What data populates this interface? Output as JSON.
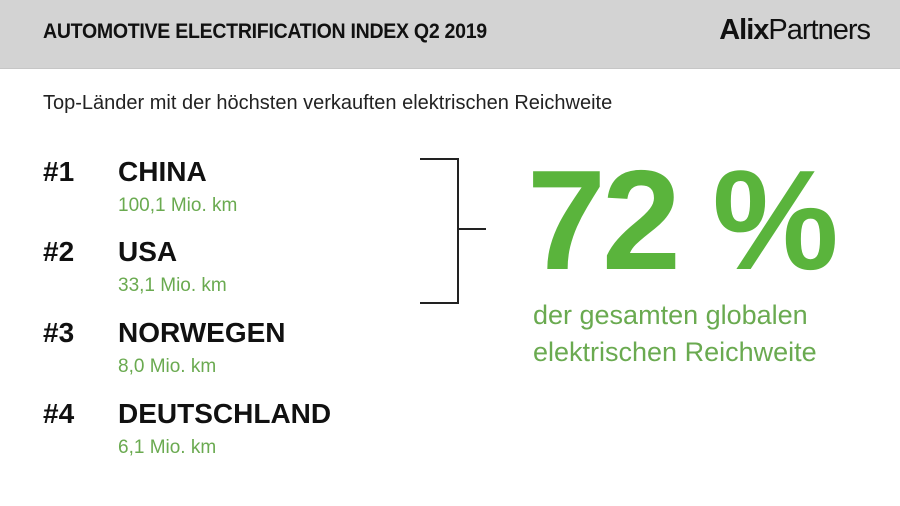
{
  "header": {
    "title": "AUTOMOTIVE ELECTRIFICATION INDEX Q2 2019",
    "logo_bold": "Alix",
    "logo_rest": "Partners"
  },
  "subtitle": "Top-Länder mit der höchsten verkauften elektrischen Reichweite",
  "rankings": [
    {
      "rank": "#1",
      "country": "CHINA",
      "value": "100,1 Mio. km"
    },
    {
      "rank": "#2",
      "country": "USA",
      "value": "33,1 Mio. km"
    },
    {
      "rank": "#3",
      "country": "NORWEGEN",
      "value": "8,0 Mio. km"
    },
    {
      "rank": "#4",
      "country": "DEUTSCHLAND",
      "value": "6,1 Mio. km"
    }
  ],
  "highlight": {
    "value": "72 %",
    "line1": "der gesamten globalen",
    "line2": "elektrischen Reichweite"
  },
  "colors": {
    "accent": "#5ab43c",
    "value_text": "#6aaa50",
    "header_bg": "#d3d3d3"
  }
}
